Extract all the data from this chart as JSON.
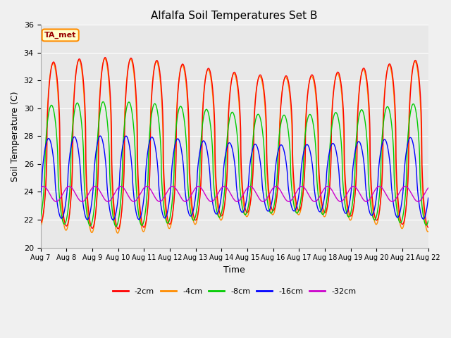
{
  "title": "Alfalfa Soil Temperatures Set B",
  "xlabel": "Time",
  "ylabel": "Soil Temperature (C)",
  "ylim": [
    20,
    36
  ],
  "xlim": [
    0,
    15
  ],
  "plot_bg_color": "#e8e8e8",
  "fig_bg_color": "#f0f0f0",
  "colors": {
    "-2cm": "#ff0000",
    "-4cm": "#ff8c00",
    "-8cm": "#00cc00",
    "-16cm": "#0000ff",
    "-32cm": "#cc00cc"
  },
  "legend_label": "TA_met",
  "x_tick_labels": [
    "Aug 7",
    "Aug 8",
    "Aug 9",
    "Aug 10",
    "Aug 11",
    "Aug 12",
    "Aug 13",
    "Aug 14",
    "Aug 15",
    "Aug 16",
    "Aug 17",
    "Aug 18",
    "Aug 19",
    "Aug 20",
    "Aug 21",
    "Aug 22"
  ],
  "grid_color": "#ffffff",
  "period": 1.0,
  "n_points": 3000,
  "amp_2": 5.5,
  "mean_2": 27.5,
  "amp_4": 5.6,
  "mean_4": 27.3,
  "amp_8": 4.0,
  "mean_8": 26.0,
  "amp_16": 2.7,
  "mean_16": 25.0,
  "amp_32": 0.55,
  "mean_32": 23.85,
  "phase_2": -1.5707963,
  "phase_4": -1.4707963,
  "phase_8": -1.0707963,
  "phase_16": -0.3707963,
  "phase_32": 0.9
}
